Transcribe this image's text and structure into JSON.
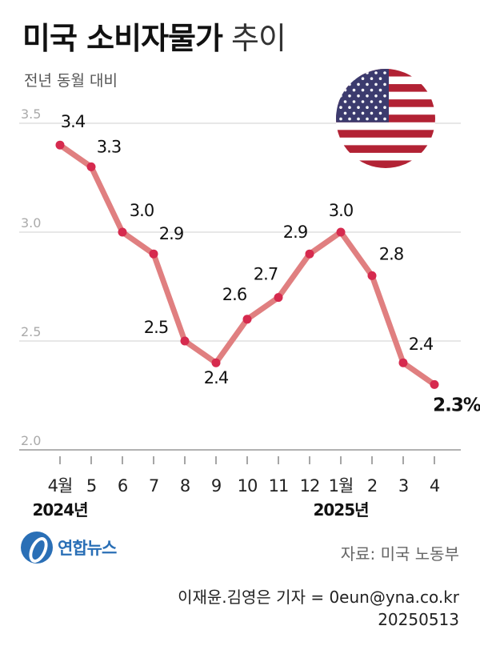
{
  "title": {
    "bold": "미국 소비자물가",
    "light": "추이"
  },
  "subtitle": "전년 동월 대비",
  "chart_data": {
    "type": "line",
    "title": "미국 소비자물가 추이",
    "subtitle": "전년 동월 대비",
    "categories": [
      "4월",
      "5",
      "6",
      "7",
      "8",
      "9",
      "10",
      "11",
      "12",
      "1월",
      "2",
      "3",
      "4"
    ],
    "years": [
      {
        "label": "2024년",
        "category_index": 0
      },
      {
        "label": "2025년",
        "category_index": 9
      }
    ],
    "values": [
      3.4,
      3.3,
      3.0,
      2.9,
      2.5,
      2.4,
      2.6,
      2.7,
      2.9,
      3.0,
      2.8,
      2.4,
      2.3
    ],
    "value_labels": [
      "3.4",
      "3.3",
      "3.0",
      "2.9",
      "2.5",
      "2.4",
      "2.6",
      "2.7",
      "2.9",
      "3.0",
      "2.8",
      "2.4",
      "2.3%"
    ],
    "y_ticks": [
      "2.0",
      "2.5",
      "3.0",
      "3.5"
    ],
    "ylim": [
      2.0,
      3.5
    ],
    "grid": true,
    "line_color": "#e07f80",
    "marker_color": "#d62a4e"
  },
  "flag": {
    "icon": "us-flag-icon",
    "red": "#b22234",
    "blue": "#3c3b6e",
    "white": "#ffffff"
  },
  "source": "자료: 미국 노동부",
  "logo": {
    "icon": "yonhap-logo-icon",
    "name": "연합뉴스",
    "color": "#2a6fb6"
  },
  "credit": {
    "line1": "이재윤.김영은 기자 = 0eun@yna.co.kr",
    "line2": "20250513"
  }
}
